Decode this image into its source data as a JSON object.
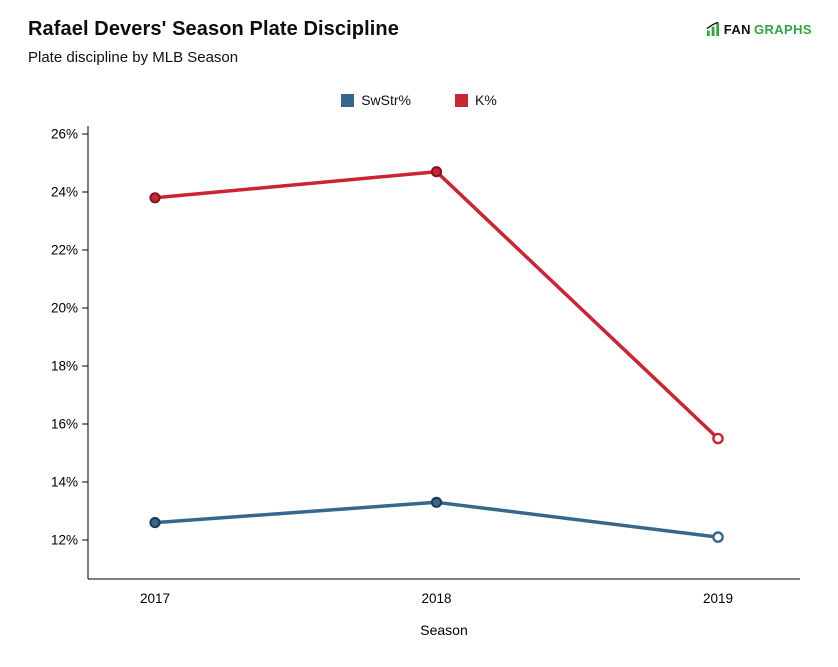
{
  "header": {
    "title": "Rafael Devers' Season Plate Discipline",
    "subtitle": "Plate discipline by MLB Season"
  },
  "logo": {
    "fan": "FAN",
    "graphs": "GRAPHS",
    "green": "#2fa63f"
  },
  "chart_data": {
    "type": "line",
    "title": "Rafael Devers' Season Plate Discipline",
    "subtitle": "Plate discipline by MLB Season",
    "xlabel": "Season",
    "ylabel": "",
    "categories": [
      "2017",
      "2018",
      "2019"
    ],
    "series": [
      {
        "name": "SwStr%",
        "color": "#35688c",
        "marker_outline": "#1c3a50",
        "values": [
          12.6,
          13.3,
          12.1
        ],
        "last_marker": "open"
      },
      {
        "name": "K%",
        "color": "#cb2535",
        "marker_outline": "#7e1622",
        "values": [
          23.8,
          24.7,
          15.5
        ],
        "last_marker": "open"
      }
    ],
    "ylim": [
      12,
      26
    ],
    "yticks": [
      12,
      14,
      16,
      18,
      20,
      22,
      24,
      26
    ],
    "ytick_format": "percent",
    "grid": false,
    "legend_position": "top"
  }
}
